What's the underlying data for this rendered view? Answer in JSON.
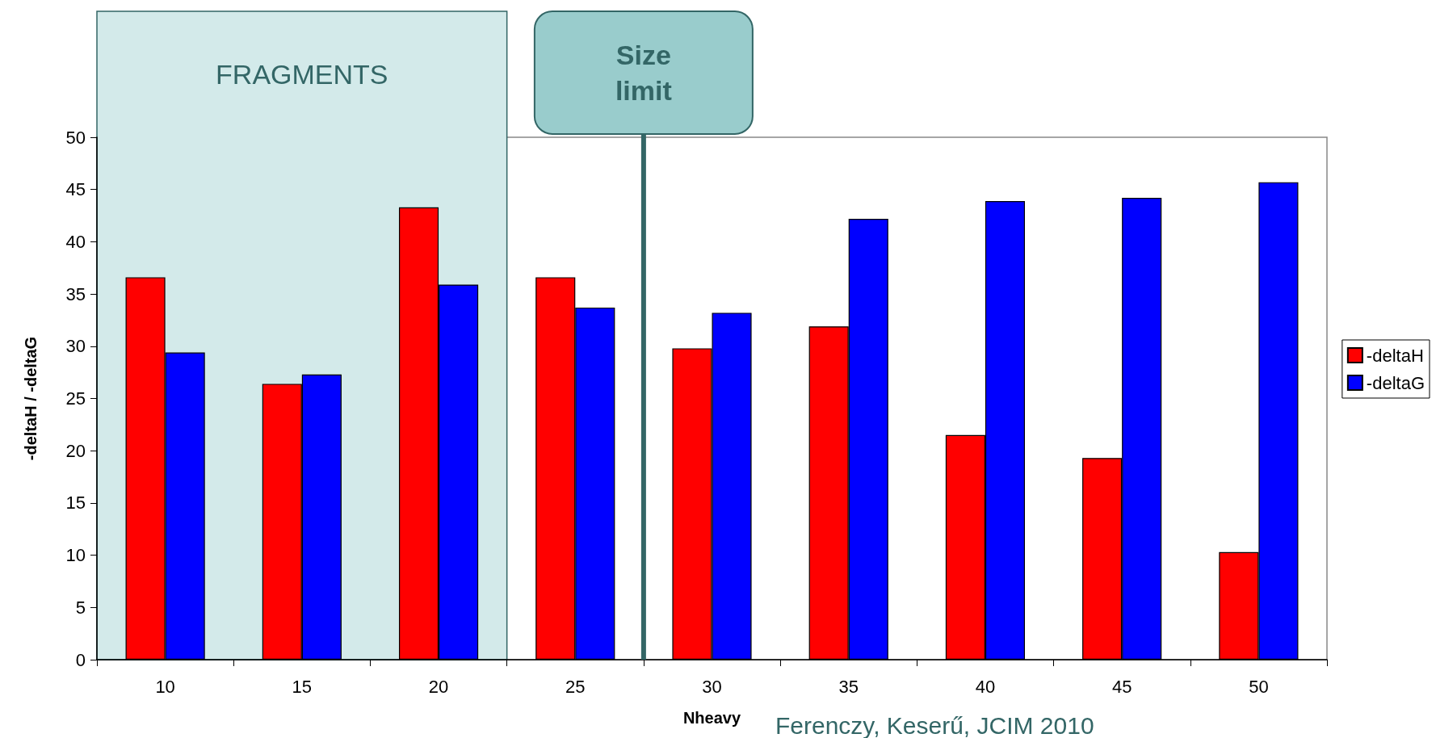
{
  "chart_data": {
    "type": "bar",
    "x": [
      10,
      15,
      20,
      25,
      30,
      35,
      40,
      45,
      50
    ],
    "xlim": [
      7.5,
      52.5
    ],
    "xticks": [
      {
        "value": 7.5,
        "label": null
      },
      {
        "value": 10,
        "label": "10"
      },
      {
        "value": 12.5,
        "label": null
      },
      {
        "value": 15,
        "label": "15"
      },
      {
        "value": 17.5,
        "label": null
      },
      {
        "value": 20,
        "label": "20"
      },
      {
        "value": 22.5,
        "label": null
      },
      {
        "value": 25,
        "label": "25"
      },
      {
        "value": 27.5,
        "label": null
      },
      {
        "value": 30,
        "label": "30"
      },
      {
        "value": 32.5,
        "label": null
      },
      {
        "value": 35,
        "label": "35"
      },
      {
        "value": 37.5,
        "label": null
      },
      {
        "value": 40,
        "label": "40"
      },
      {
        "value": 42.5,
        "label": null
      },
      {
        "value": 45,
        "label": "45"
      },
      {
        "value": 47.5,
        "label": null
      },
      {
        "value": 50,
        "label": "50"
      },
      {
        "value": 52.5,
        "label": null
      }
    ],
    "series": [
      {
        "name": "-deltaH",
        "color": "#ff0000",
        "values": [
          36.6,
          26.4,
          43.3,
          36.6,
          29.8,
          31.9,
          21.5,
          19.3,
          10.3
        ]
      },
      {
        "name": "-deltaG",
        "color": "#0000ff",
        "values": [
          29.4,
          27.3,
          35.9,
          33.7,
          33.2,
          42.2,
          43.9,
          44.2,
          45.7
        ]
      }
    ],
    "ylim": [
      0,
      50
    ],
    "yticks": [
      0,
      5,
      10,
      15,
      20,
      25,
      30,
      35,
      40,
      45,
      50
    ],
    "xlabel": "Nheavy",
    "ylabel": "-deltaH / -deltaG",
    "bands": [
      {
        "axis": "x",
        "from": 7.5,
        "to": 22.5,
        "label": "FRAGMENTS",
        "color": "#d3eaea"
      }
    ],
    "ref_lines": [
      {
        "axis": "x",
        "value": 27.5,
        "label": "Size limit",
        "color": "#336666"
      }
    ],
    "annotations": [
      "Ferenczy, Keserű, JCIM 2010"
    ],
    "legend": "right",
    "grid": false
  }
}
